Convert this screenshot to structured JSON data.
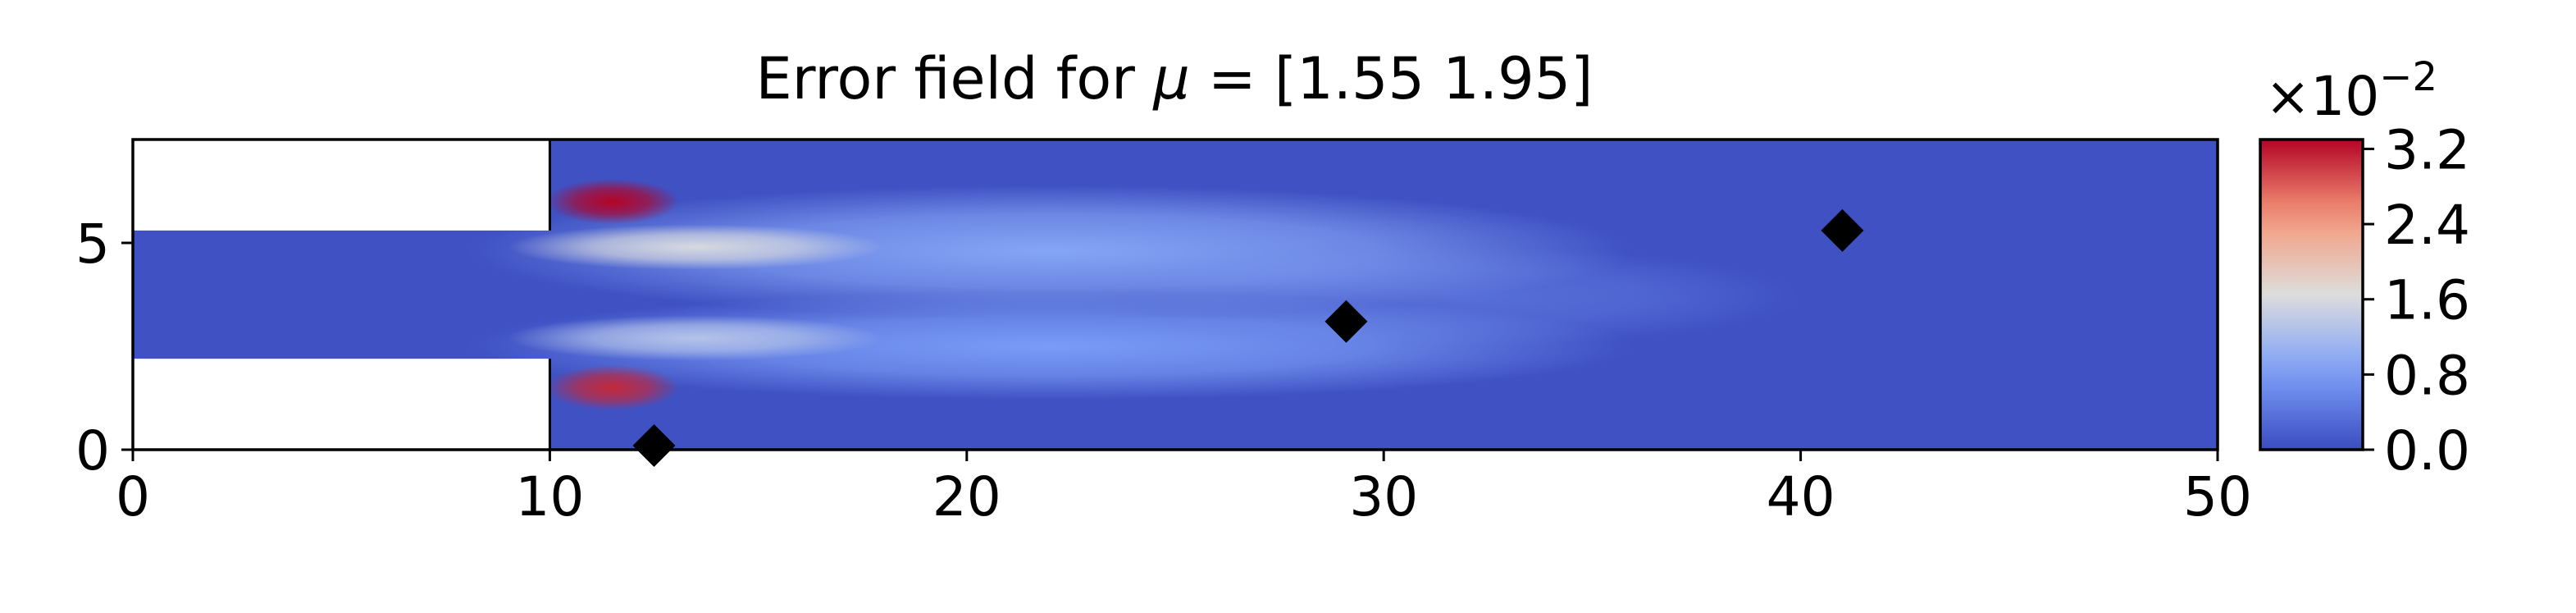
{
  "chart_data": {
    "type": "heatmap",
    "title_prefix": "Error field for ",
    "title_symbol": "μ",
    "title_suffix": " = [1.55 1.95]",
    "xlabel": "",
    "ylabel": "",
    "xlim": [
      0,
      50
    ],
    "ylim": [
      0,
      7.5
    ],
    "x_ticks": [
      0,
      10,
      20,
      30,
      40,
      50
    ],
    "x_tick_labels": [
      "0",
      "10",
      "20",
      "30",
      "40",
      "50"
    ],
    "y_ticks": [
      0,
      5
    ],
    "y_tick_labels": [
      "0",
      "5"
    ],
    "grid": false,
    "colormap": "coolwarm",
    "colorbar": {
      "range": [
        0.0,
        3.3
      ],
      "ticks": [
        0.0,
        0.8,
        1.6,
        2.4,
        3.2
      ],
      "tick_labels": [
        "0.0",
        "0.8",
        "1.6",
        "2.4",
        "3.2"
      ],
      "multiplier_base": "×10",
      "multiplier_exponent": "−2"
    },
    "domain": {
      "inlet_channel": {
        "x": [
          0,
          10
        ],
        "y": [
          2.2,
          5.3
        ]
      },
      "main_channel": {
        "x": [
          10,
          50
        ],
        "y": [
          0,
          7.5
        ]
      },
      "blank_regions": [
        {
          "x": [
            0,
            10
          ],
          "y": [
            5.3,
            7.5
          ]
        },
        {
          "x": [
            0,
            10
          ],
          "y": [
            0,
            2.2
          ]
        }
      ],
      "background_value": 0.05
    },
    "hotspots": [
      {
        "cx": 11.5,
        "cy": 6.0,
        "rx": 1.6,
        "ry": 0.55,
        "value": 3.3
      },
      {
        "cx": 11.5,
        "cy": 1.5,
        "rx": 1.6,
        "ry": 0.55,
        "value": 3.1
      },
      {
        "cx": 13.5,
        "cy": 4.9,
        "rx": 4.5,
        "ry": 0.55,
        "value": 1.6
      },
      {
        "cx": 13.5,
        "cy": 2.7,
        "rx": 4.5,
        "ry": 0.55,
        "value": 1.3
      },
      {
        "cx": 22.0,
        "cy": 4.8,
        "rx": 14.0,
        "ry": 1.6,
        "value": 0.9
      },
      {
        "cx": 22.0,
        "cy": 2.5,
        "rx": 14.0,
        "ry": 1.3,
        "value": 0.8
      },
      {
        "cx": 32.0,
        "cy": 3.7,
        "rx": 8.0,
        "ry": 1.2,
        "value": 0.35
      }
    ],
    "markers": [
      {
        "x": 12.5,
        "y": 0.1
      },
      {
        "x": 29.1,
        "y": 3.1
      },
      {
        "x": 41.0,
        "y": 5.3
      }
    ]
  }
}
